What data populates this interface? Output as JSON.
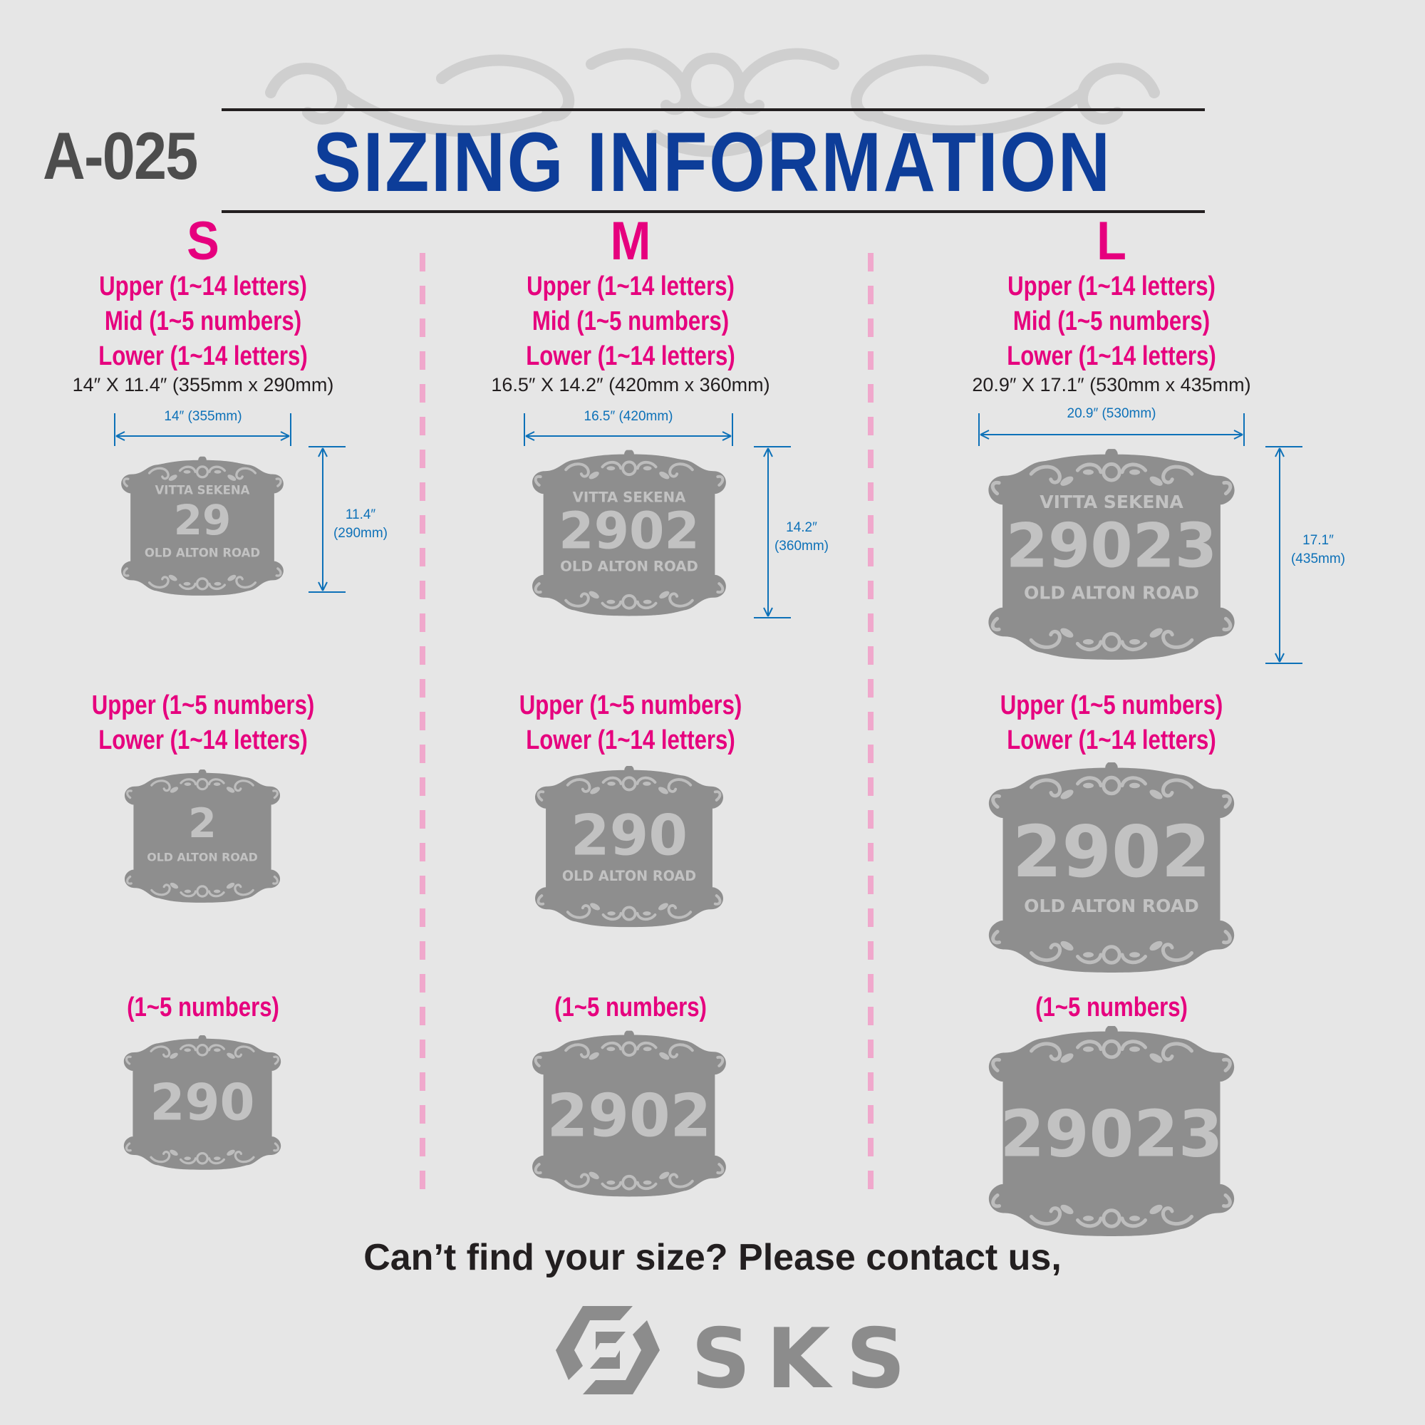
{
  "header": {
    "code": "A-025",
    "title": "SIZING INFORMATION"
  },
  "sizes": [
    {
      "letter": "S",
      "full_spec": [
        "Upper (1~14 letters)",
        "Mid (1~5 numbers)",
        "Lower (1~14 letters)"
      ],
      "dimensions": "14″ X 11.4″  (355mm x 290mm)",
      "width_label": "14″ (355mm)",
      "height_label": [
        "11.4″",
        "(290mm)"
      ],
      "sample1": {
        "upper": "VITTA SEKENA",
        "number": "29",
        "lower": "OLD ALTON ROAD"
      },
      "two_line_spec": [
        "Upper (1~5 numbers)",
        "Lower (1~14 letters)"
      ],
      "sample2": {
        "number": "2",
        "lower": "OLD ALTON ROAD"
      },
      "number_spec": "(1~5 numbers)",
      "sample3": {
        "number": "290"
      }
    },
    {
      "letter": "M",
      "full_spec": [
        "Upper (1~14 letters)",
        "Mid (1~5 numbers)",
        "Lower (1~14 letters)"
      ],
      "dimensions": "16.5″ X 14.2″  (420mm x 360mm)",
      "width_label": "16.5″ (420mm)",
      "height_label": [
        "14.2″",
        "(360mm)"
      ],
      "sample1": {
        "upper": "VITTA SEKENA",
        "number": "2902",
        "lower": "OLD ALTON ROAD"
      },
      "two_line_spec": [
        "Upper (1~5 numbers)",
        "Lower (1~14 letters)"
      ],
      "sample2": {
        "number": "290",
        "lower": "OLD ALTON ROAD"
      },
      "number_spec": "(1~5 numbers)",
      "sample3": {
        "number": "2902"
      }
    },
    {
      "letter": "L",
      "full_spec": [
        "Upper (1~14 letters)",
        "Mid (1~5 numbers)",
        "Lower (1~14 letters)"
      ],
      "dimensions": "20.9″ X 17.1″  (530mm x 435mm)",
      "width_label": "20.9″ (530mm)",
      "height_label": [
        "17.1″",
        "(435mm)"
      ],
      "sample1": {
        "upper": "VITTA SEKENA",
        "number": "29023",
        "lower": "OLD ALTON ROAD"
      },
      "two_line_spec": [
        "Upper (1~5 numbers)",
        "Lower (1~14 letters)"
      ],
      "sample2": {
        "number": "2902",
        "lower": "OLD ALTON ROAD"
      },
      "number_spec": "(1~5 numbers)",
      "sample3": {
        "number": "29023"
      }
    }
  ],
  "footer": {
    "contact_text": "Can’t find your size? Please contact us,",
    "brand": "SKS"
  },
  "colors": {
    "background": "#e6e6e6",
    "title_blue": "#0d3d99",
    "accent_pink": "#e6007e",
    "dimension_blue": "#0d71b8",
    "plaque_gray": "#8e8e8e"
  },
  "icons": {
    "top_ornament": "flourish-ornament",
    "brand_logo": "sks-hexagon-logo"
  }
}
